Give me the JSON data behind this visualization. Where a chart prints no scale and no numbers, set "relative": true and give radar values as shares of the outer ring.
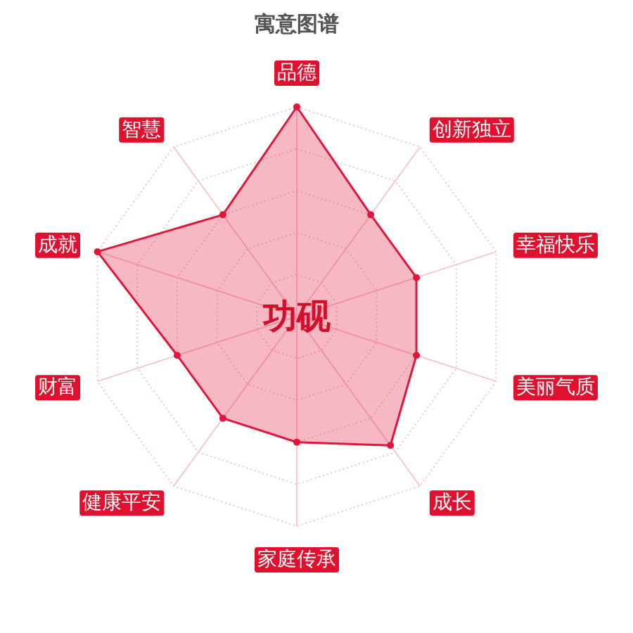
{
  "chart_data": {
    "type": "radar",
    "title": "寓意图谱",
    "categories": [
      "品德",
      "创新独立",
      "幸福快乐",
      "美丽气质",
      "成长",
      "家庭传承",
      "健康平安",
      "财富",
      "成就",
      "智慧"
    ],
    "relative": true,
    "series": [
      {
        "color": "#e0163a",
        "values": [
          1.0,
          0.6,
          0.6,
          0.6,
          0.76,
          0.6,
          0.6,
          0.6,
          1.0,
          0.6
        ]
      }
    ],
    "annotations": [
      "功砚"
    ],
    "grid": true,
    "marker": "circle"
  }
}
